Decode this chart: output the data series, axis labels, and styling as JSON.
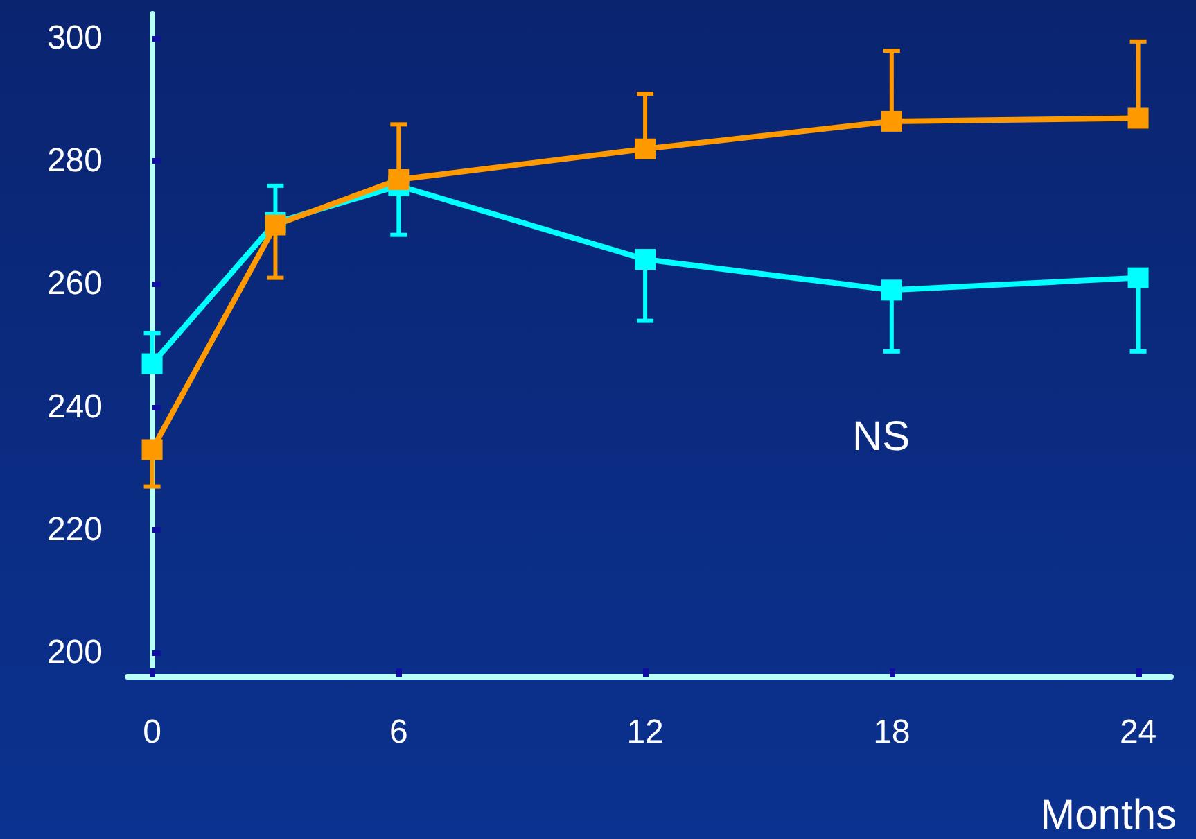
{
  "chart_data": {
    "type": "line",
    "xlabel": "Months",
    "annotations": [
      "NS"
    ],
    "x": [
      0,
      3,
      6,
      12,
      18,
      24
    ],
    "series": [
      {
        "color": "#00ffff",
        "values": [
          247,
          270,
          276,
          264,
          259,
          261
        ],
        "errors": [
          [
            247,
            252
          ],
          [
            270,
            276
          ],
          [
            268,
            276
          ],
          [
            254,
            264
          ],
          [
            249,
            259
          ],
          [
            249,
            261
          ]
        ]
      },
      {
        "color": "#ff9900",
        "values": [
          233,
          269.6,
          277,
          282,
          286.5,
          287
        ],
        "errors": [
          [
            227,
            233
          ],
          [
            261,
            269.6
          ],
          [
            277,
            286
          ],
          [
            282,
            291
          ],
          [
            286.5,
            298
          ],
          [
            287,
            299.5
          ]
        ]
      }
    ],
    "xlim": [
      -0.6,
      24.8
    ],
    "xticks": [
      0,
      6,
      12,
      18,
      24
    ],
    "ylim": [
      196,
      304
    ],
    "yticks": [
      200,
      220,
      240,
      260,
      280,
      300
    ],
    "grid": false,
    "marker": "square",
    "line_style": "solid"
  }
}
